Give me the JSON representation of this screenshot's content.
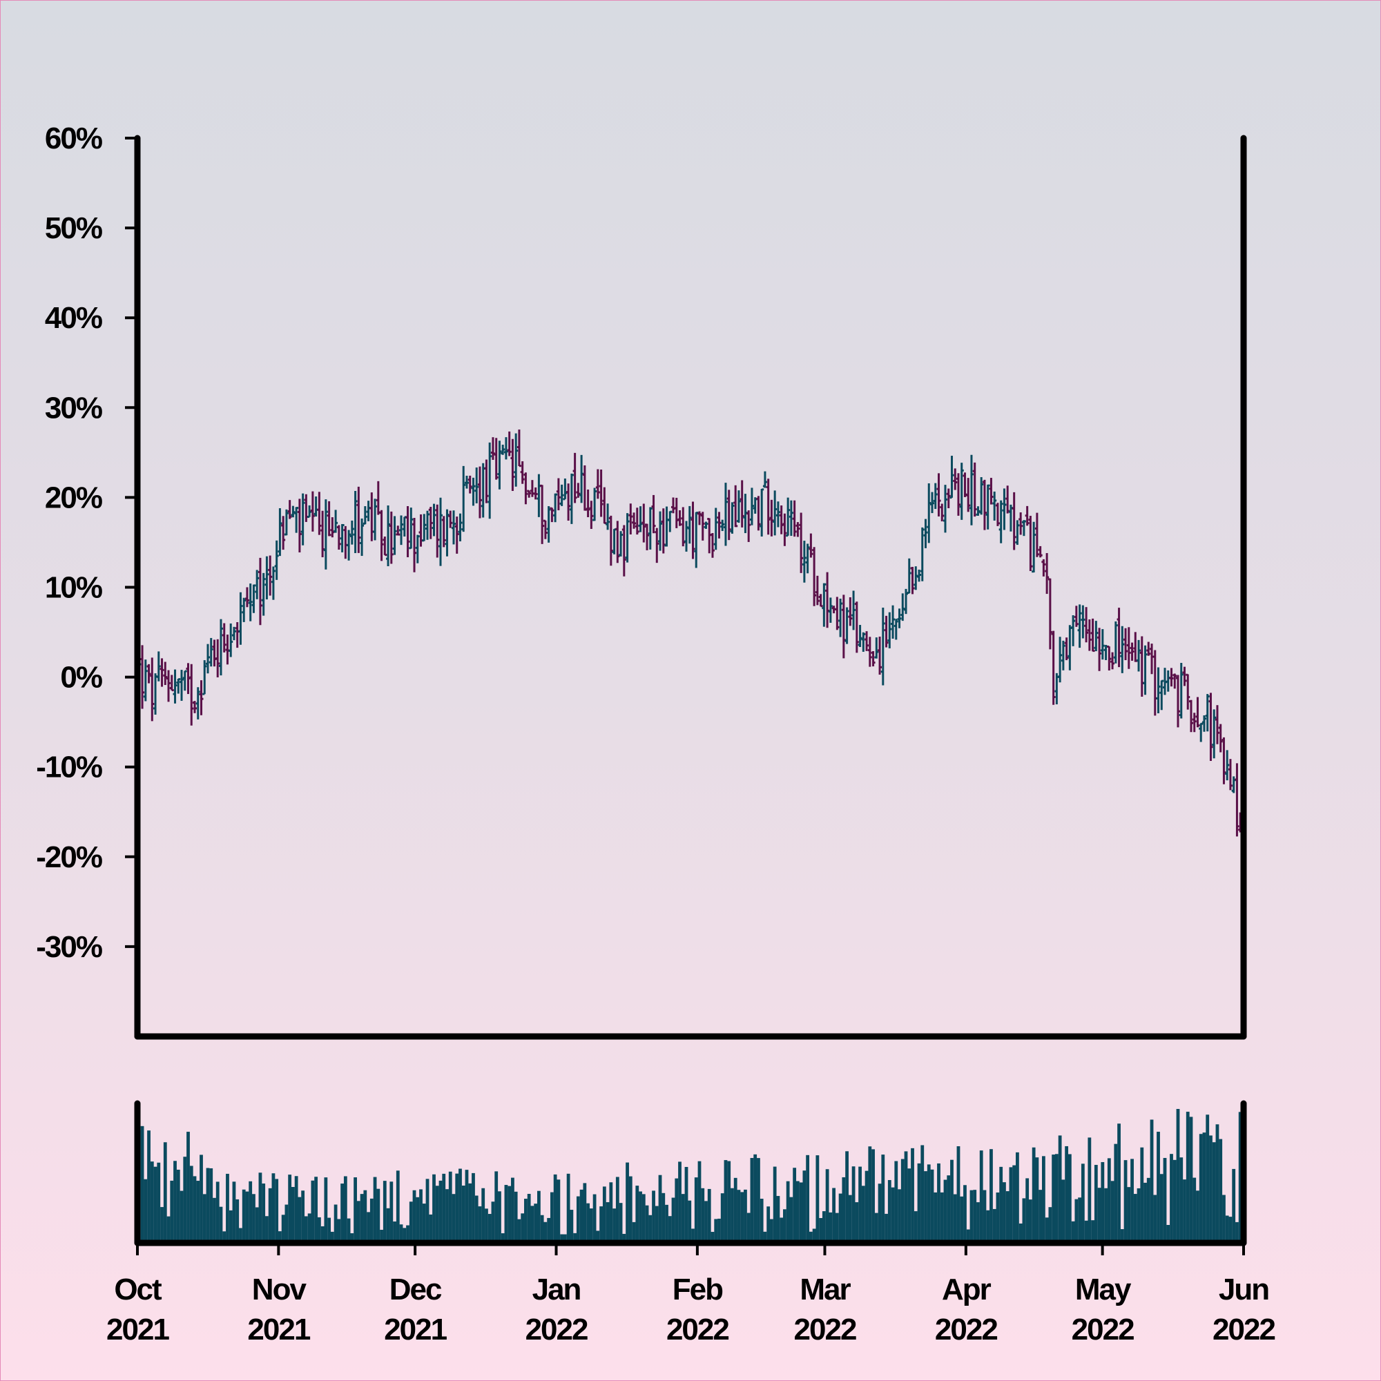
{
  "chart_data": {
    "type": "ohlc",
    "title": "",
    "xlabel": "",
    "ylabel": "",
    "ylim": [
      -40,
      60
    ],
    "grid": false,
    "legend": "none",
    "colors": {
      "up": "#0b4a5e",
      "down": "#5a1048",
      "volume": "#0b4a5e",
      "axes": "#000000"
    },
    "yticks": [
      {
        "value": 60,
        "label": "60%"
      },
      {
        "value": 50,
        "label": "50%"
      },
      {
        "value": 40,
        "label": "40%"
      },
      {
        "value": 30,
        "label": "30%"
      },
      {
        "value": 20,
        "label": "20%"
      },
      {
        "value": 10,
        "label": "10%"
      },
      {
        "value": 0,
        "label": "0%"
      },
      {
        "value": -10,
        "label": "-10%"
      },
      {
        "value": -20,
        "label": "-20%"
      },
      {
        "value": -30,
        "label": "-30%"
      }
    ],
    "xlim": [
      "2021-10-01",
      "2022-06-01"
    ],
    "xticks": [
      {
        "date": "2021-10-01",
        "month": "Oct",
        "year": "2021"
      },
      {
        "date": "2021-11-01",
        "month": "Nov",
        "year": "2021"
      },
      {
        "date": "2021-12-01",
        "month": "Dec",
        "year": "2021"
      },
      {
        "date": "2022-01-01",
        "month": "Jan",
        "year": "2022"
      },
      {
        "date": "2022-02-01",
        "month": "Feb",
        "year": "2022"
      },
      {
        "date": "2022-03-01",
        "month": "Mar",
        "year": "2022"
      },
      {
        "date": "2022-04-01",
        "month": "Apr",
        "year": "2022"
      },
      {
        "date": "2022-05-01",
        "month": "May",
        "year": "2022"
      },
      {
        "date": "2022-06-01",
        "month": "Jun",
        "year": "2022"
      }
    ],
    "close_trend": [
      {
        "date": "2021-10-01",
        "value": 1
      },
      {
        "date": "2021-10-04",
        "value": -2
      },
      {
        "date": "2021-10-08",
        "value": 0
      },
      {
        "date": "2021-10-13",
        "value": -2
      },
      {
        "date": "2021-10-18",
        "value": 3
      },
      {
        "date": "2021-10-24",
        "value": 7
      },
      {
        "date": "2021-10-28",
        "value": 9
      },
      {
        "date": "2021-11-03",
        "value": 18
      },
      {
        "date": "2021-11-10",
        "value": 16
      },
      {
        "date": "2021-11-20",
        "value": 18
      },
      {
        "date": "2021-11-25",
        "value": 15
      },
      {
        "date": "2021-12-01",
        "value": 16
      },
      {
        "date": "2021-12-08",
        "value": 17
      },
      {
        "date": "2021-12-16",
        "value": 22
      },
      {
        "date": "2021-12-22",
        "value": 24
      },
      {
        "date": "2021-12-30",
        "value": 18
      },
      {
        "date": "2022-01-05",
        "value": 22
      },
      {
        "date": "2022-01-15",
        "value": 15
      },
      {
        "date": "2022-01-24",
        "value": 17
      },
      {
        "date": "2022-02-02",
        "value": 16
      },
      {
        "date": "2022-02-10",
        "value": 18
      },
      {
        "date": "2022-02-18",
        "value": 20
      },
      {
        "date": "2022-02-26",
        "value": 12
      },
      {
        "date": "2022-03-05",
        "value": 6
      },
      {
        "date": "2022-03-13",
        "value": 3
      },
      {
        "date": "2022-03-18",
        "value": 6
      },
      {
        "date": "2022-03-25",
        "value": 20
      },
      {
        "date": "2022-03-29",
        "value": 21
      },
      {
        "date": "2022-04-06",
        "value": 20
      },
      {
        "date": "2022-04-14",
        "value": 15
      },
      {
        "date": "2022-04-19",
        "value": 13
      },
      {
        "date": "2022-04-20",
        "value": -2
      },
      {
        "date": "2022-04-26",
        "value": 6
      },
      {
        "date": "2022-05-03",
        "value": 4
      },
      {
        "date": "2022-05-10",
        "value": 1
      },
      {
        "date": "2022-05-18",
        "value": -2
      },
      {
        "date": "2022-05-24",
        "value": -4
      },
      {
        "date": "2022-06-01",
        "value": -17
      }
    ],
    "volume_trend": [
      {
        "date": "2021-10-01",
        "value": 0.75
      },
      {
        "date": "2021-10-20",
        "value": 0.45
      },
      {
        "date": "2021-11-05",
        "value": 0.4
      },
      {
        "date": "2021-12-01",
        "value": 0.38
      },
      {
        "date": "2022-01-10",
        "value": 0.4
      },
      {
        "date": "2022-02-01",
        "value": 0.45
      },
      {
        "date": "2022-03-10",
        "value": 0.5
      },
      {
        "date": "2022-04-10",
        "value": 0.52
      },
      {
        "date": "2022-05-01",
        "value": 0.6
      },
      {
        "date": "2022-06-01",
        "value": 0.8
      }
    ]
  }
}
